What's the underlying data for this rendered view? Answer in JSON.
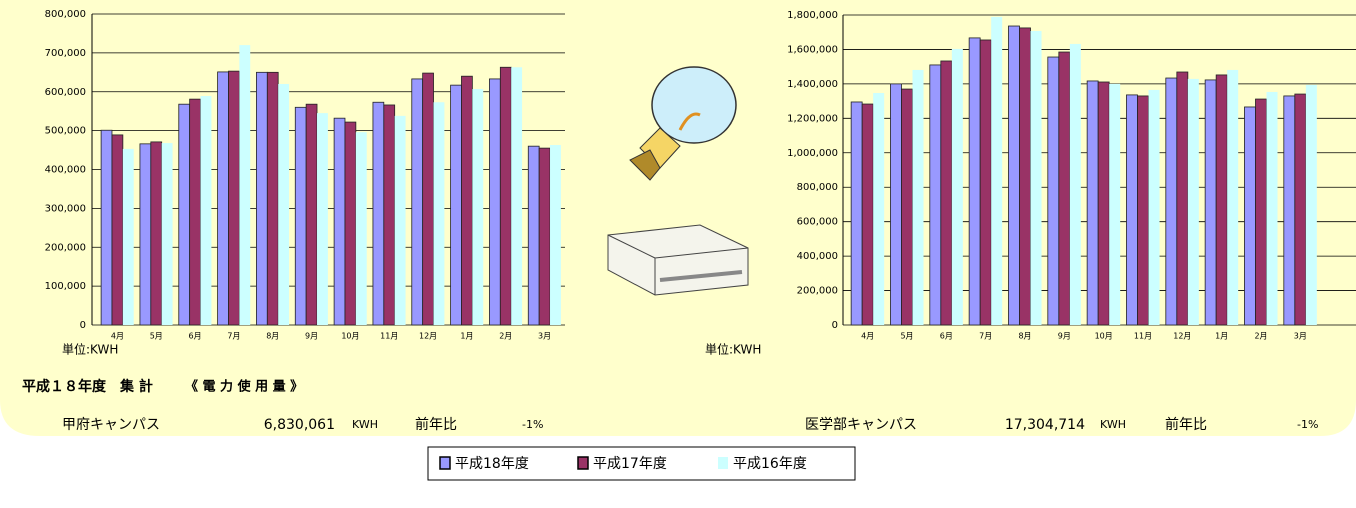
{
  "chart_data": [
    {
      "type": "bar",
      "y_label": "単位:KWH",
      "categories": [
        "4月",
        "5月",
        "6月",
        "7月",
        "8月",
        "9月",
        "10月",
        "11月",
        "12月",
        "1月",
        "2月",
        "3月"
      ],
      "series": [
        {
          "name": "平成18年度",
          "color": "#9999ff",
          "values": [
            501000,
            466000,
            568000,
            651000,
            650000,
            560000,
            532000,
            573000,
            633000,
            617000,
            633000,
            460000
          ]
        },
        {
          "name": "平成17年度",
          "color": "#993366",
          "values": [
            489000,
            471000,
            581000,
            653000,
            650000,
            568000,
            522000,
            566000,
            648000,
            640000,
            663000,
            455000
          ]
        },
        {
          "name": "平成16年度",
          "color": "#ccffff",
          "values": [
            453000,
            468000,
            589000,
            720000,
            620000,
            545000,
            496000,
            538000,
            573000,
            607000,
            663000,
            463000
          ]
        }
      ],
      "ylim": [
        0,
        800000
      ],
      "yticks": [
        0,
        {
          "value": 100000,
          "label": "100,000"
        },
        {
          "value": 200000,
          "label": "200,000"
        },
        {
          "value": 300000,
          "label": "300,000"
        },
        {
          "value": 400000,
          "label": "400,000"
        },
        {
          "value": 500000,
          "label": "500,000"
        },
        {
          "value": 600000,
          "label": "600,000"
        },
        {
          "value": 700000,
          "label": "700,000"
        },
        {
          "value": 800000,
          "label": "800,000"
        }
      ],
      "grid": true
    },
    {
      "type": "bar",
      "y_label": "単位:KWH",
      "categories": [
        "4月",
        "5月",
        "6月",
        "7月",
        "8月",
        "9月",
        "10月",
        "11月",
        "12月",
        "1月",
        "2月",
        "3月"
      ],
      "series": [
        {
          "name": "平成18年度",
          "color": "#9999ff",
          "values": [
            1295000,
            1400000,
            1510000,
            1667000,
            1736000,
            1556000,
            1417000,
            1336000,
            1434000,
            1423000,
            1266000,
            1330000
          ]
        },
        {
          "name": "平成17年度",
          "color": "#993366",
          "values": [
            1283000,
            1370000,
            1533000,
            1655000,
            1725000,
            1585000,
            1411000,
            1330000,
            1469000,
            1452000,
            1312000,
            1341000
          ]
        },
        {
          "name": "平成16年度",
          "color": "#ccffff",
          "values": [
            1347000,
            1481000,
            1603000,
            1789000,
            1707000,
            1632000,
            1400000,
            1365000,
            1429000,
            1481000,
            1353000,
            1394000
          ]
        }
      ],
      "ylim": [
        0,
        1800000
      ],
      "yticks": [
        0,
        {
          "value": 200000,
          "label": "200,000"
        },
        {
          "value": 400000,
          "label": "400,000"
        },
        {
          "value": 600000,
          "label": "600,000"
        },
        {
          "value": 800000,
          "label": "800,000"
        },
        {
          "value": 1000000,
          "label": "1,000,000"
        },
        {
          "value": 1200000,
          "label": "1,200,000"
        },
        {
          "value": 1400000,
          "label": "1,400,000"
        },
        {
          "value": 1600000,
          "label": "1,600,000"
        },
        {
          "value": 1800000,
          "label": "1,800,000"
        }
      ],
      "grid": true
    }
  ],
  "summary": {
    "title": "平成１８年度　集 計",
    "subtitle": "《 電 力 使 用 量 》",
    "rows": [
      {
        "campus": "甲府キャンパス",
        "amount": "6,830,061",
        "unit": "KWH",
        "ratio_label": "前年比",
        "ratio": "-1%"
      },
      {
        "campus": "医学部キャンパス",
        "amount": "17,304,714",
        "unit": "KWH",
        "ratio_label": "前年比",
        "ratio": "-1%"
      }
    ]
  }
}
